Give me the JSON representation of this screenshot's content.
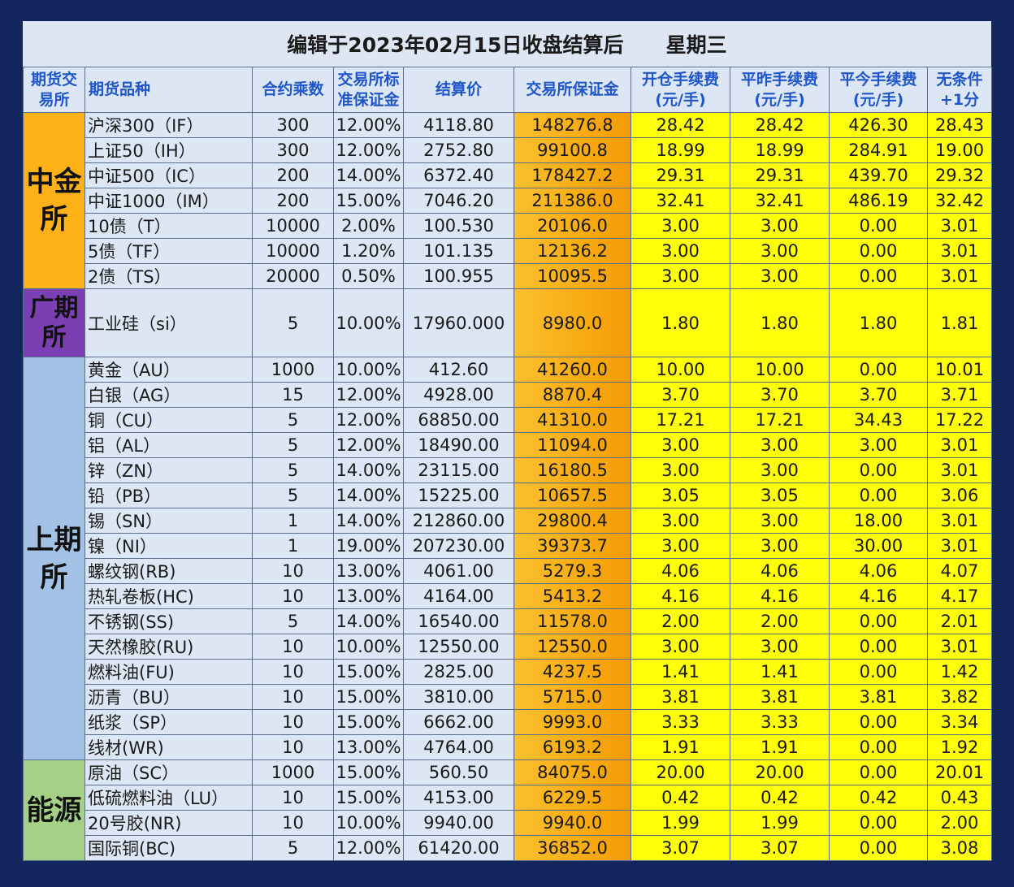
{
  "title": "编辑于2023年02月15日收盘结算后      星期三",
  "headers": {
    "exchange": "期货交易所",
    "product": "期货品种",
    "multiplier": "合约乘数",
    "margin_rate": "交易所标准保证金",
    "settle": "结算价",
    "margin": "交易所保证金",
    "open_fee": "开仓手续费(元/手)",
    "close_yest_fee": "平昨手续费(元/手)",
    "close_today_fee": "平今手续费(元/手)",
    "plus_one": "无条件+1分"
  },
  "exchanges": [
    {
      "name": "中金所",
      "rows": [
        [
          "沪深300（IF）",
          "300",
          "12.00%",
          "4118.80",
          "148276.8",
          "28.42",
          "28.42",
          "426.30",
          "28.43"
        ],
        [
          "上证50（IH）",
          "300",
          "12.00%",
          "2752.80",
          "99100.8",
          "18.99",
          "18.99",
          "284.91",
          "19.00"
        ],
        [
          "中证500（IC）",
          "200",
          "14.00%",
          "6372.40",
          "178427.2",
          "29.31",
          "29.31",
          "439.70",
          "29.32"
        ],
        [
          "中证1000（IM）",
          "200",
          "15.00%",
          "7046.20",
          "211386.0",
          "32.41",
          "32.41",
          "486.19",
          "32.42"
        ],
        [
          "10债（T）",
          "10000",
          "2.00%",
          "100.530",
          "20106.0",
          "3.00",
          "3.00",
          "0.00",
          "3.01"
        ],
        [
          "5债（TF）",
          "10000",
          "1.20%",
          "101.135",
          "12136.2",
          "3.00",
          "3.00",
          "0.00",
          "3.01"
        ],
        [
          "2债（TS）",
          "20000",
          "0.50%",
          "100.955",
          "10095.5",
          "3.00",
          "3.00",
          "0.00",
          "3.01"
        ]
      ]
    },
    {
      "name": "广期所",
      "rows": [
        [
          "工业硅（si）",
          "5",
          "10.00%",
          "17960.000",
          "8980.0",
          "1.80",
          "1.80",
          "1.80",
          "1.81"
        ]
      ]
    },
    {
      "name": "上期所",
      "rows": [
        [
          "黄金（AU）",
          "1000",
          "10.00%",
          "412.60",
          "41260.0",
          "10.00",
          "10.00",
          "0.00",
          "10.01"
        ],
        [
          "白银（AG）",
          "15",
          "12.00%",
          "4928.00",
          "8870.4",
          "3.70",
          "3.70",
          "3.70",
          "3.71"
        ],
        [
          "铜（CU）",
          "5",
          "12.00%",
          "68850.00",
          "41310.0",
          "17.21",
          "17.21",
          "34.43",
          "17.22"
        ],
        [
          "铝（AL）",
          "5",
          "12.00%",
          "18490.00",
          "11094.0",
          "3.00",
          "3.00",
          "3.00",
          "3.01"
        ],
        [
          "锌（ZN）",
          "5",
          "14.00%",
          "23115.00",
          "16180.5",
          "3.00",
          "3.00",
          "0.00",
          "3.01"
        ],
        [
          "铅（PB）",
          "5",
          "14.00%",
          "15225.00",
          "10657.5",
          "3.05",
          "3.05",
          "0.00",
          "3.06"
        ],
        [
          "锡（SN）",
          "1",
          "14.00%",
          "212860.00",
          "29800.4",
          "3.00",
          "3.00",
          "18.00",
          "3.01"
        ],
        [
          "镍（NI）",
          "1",
          "19.00%",
          "207230.00",
          "39373.7",
          "3.00",
          "3.00",
          "30.00",
          "3.01"
        ],
        [
          "螺纹钢(RB)",
          "10",
          "13.00%",
          "4061.00",
          "5279.3",
          "4.06",
          "4.06",
          "4.06",
          "4.07"
        ],
        [
          "热轧卷板(HC)",
          "10",
          "13.00%",
          "4164.00",
          "5413.2",
          "4.16",
          "4.16",
          "4.16",
          "4.17"
        ],
        [
          "不锈钢(SS)",
          "5",
          "14.00%",
          "16540.00",
          "11578.0",
          "2.00",
          "2.00",
          "0.00",
          "2.01"
        ],
        [
          "天然橡胶(RU)",
          "10",
          "10.00%",
          "12550.00",
          "12550.0",
          "3.00",
          "3.00",
          "0.00",
          "3.01"
        ],
        [
          "燃料油(FU)",
          "10",
          "15.00%",
          "2825.00",
          "4237.5",
          "1.41",
          "1.41",
          "0.00",
          "1.42"
        ],
        [
          "沥青（BU）",
          "10",
          "15.00%",
          "3810.00",
          "5715.0",
          "3.81",
          "3.81",
          "3.81",
          "3.82"
        ],
        [
          "纸浆（SP）",
          "10",
          "15.00%",
          "6662.00",
          "9993.0",
          "3.33",
          "3.33",
          "0.00",
          "3.34"
        ],
        [
          "线材(WR)",
          "10",
          "13.00%",
          "4764.00",
          "6193.2",
          "1.91",
          "1.91",
          "0.00",
          "1.92"
        ]
      ]
    },
    {
      "name": "能源",
      "rows": [
        [
          "原油（SC）",
          "1000",
          "15.00%",
          "560.50",
          "84075.0",
          "20.00",
          "20.00",
          "0.00",
          "20.01"
        ],
        [
          "低硫燃料油（LU）",
          "10",
          "15.00%",
          "4153.00",
          "6229.5",
          "0.42",
          "0.42",
          "0.42",
          "0.43"
        ],
        [
          "20号胶(NR)",
          "10",
          "10.00%",
          "9940.00",
          "9940.0",
          "1.99",
          "1.99",
          "0.00",
          "2.00"
        ],
        [
          "国际铜(BC)",
          "5",
          "12.00%",
          "61420.00",
          "36852.0",
          "3.07",
          "3.07",
          "0.00",
          "3.08"
        ]
      ]
    }
  ]
}
